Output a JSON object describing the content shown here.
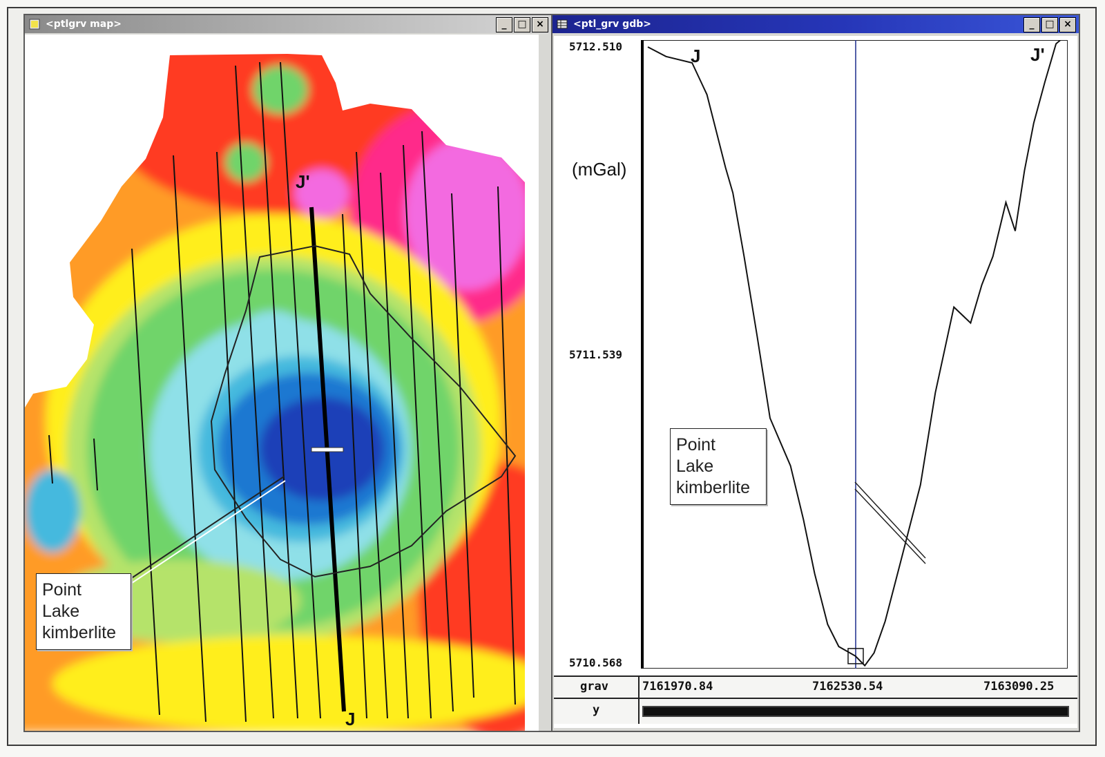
{
  "windows": {
    "map": {
      "title": "<ptlgrv map>",
      "controls": [
        "_",
        "□",
        "×"
      ]
    },
    "profile": {
      "title": "<ptl_grv gdb>",
      "controls": [
        "_",
        "□",
        "×"
      ]
    }
  },
  "map": {
    "profile_labels": {
      "start": "J",
      "end": "J'"
    },
    "callout": [
      "Point",
      "Lake",
      "kimberlite"
    ],
    "colors": {
      "deep_blue": "#1a3fb8",
      "blue": "#1f78d1",
      "light_blue": "#45b9de",
      "cyan": "#8fe0e8",
      "green": "#6fd46a",
      "light_green": "#b5e36b",
      "yellow": "#ffee1a",
      "orange": "#ff9b25",
      "red": "#ff3a22",
      "magenta": "#ff2a8a",
      "pink": "#f36be0",
      "white": "#ffffff"
    }
  },
  "profile": {
    "y_ticks": [
      "5712.510",
      "5711.539",
      "5710.568"
    ],
    "unit": "(mGal)",
    "endpoint_labels": {
      "start": "J",
      "end": "J'"
    },
    "callout": [
      "Point",
      "Lake",
      "kimberlite"
    ],
    "axis": {
      "channel_label": "grav",
      "x_values": [
        "7161970.84",
        "7162530.54",
        "7163090.25"
      ],
      "y_label": "y"
    }
  },
  "chart_data": {
    "type": "line",
    "title": "",
    "xlabel": "y",
    "ylabel": "(mGal)",
    "ylim": [
      5710.568,
      5712.51
    ],
    "xlim": [
      7161970.84,
      7163090.25
    ],
    "series": [
      {
        "x": [
          7161970.84,
          7162020,
          7162090,
          7162130,
          7162180,
          7162200,
          7162230,
          7162265,
          7162300,
          7162355,
          7162390,
          7162420,
          7162455,
          7162485,
          7162515,
          7162530,
          7162555,
          7162580,
          7162610,
          7162650,
          7162705,
          7162745,
          7162795,
          7162840,
          7162870,
          7162900,
          7162935,
          7162960,
          7162985,
          7163010,
          7163040,
          7163070,
          7163090.25
        ],
        "y": [
          5712.51,
          5712.48,
          5712.46,
          5712.36,
          5712.13,
          5712.05,
          5711.85,
          5711.6,
          5711.34,
          5711.19,
          5711.02,
          5710.85,
          5710.69,
          5710.62,
          5710.6,
          5710.59,
          5710.56,
          5710.6,
          5710.7,
          5710.88,
          5711.13,
          5711.42,
          5711.69,
          5711.64,
          5711.76,
          5711.85,
          5712.02,
          5711.93,
          5712.12,
          5712.27,
          5712.4,
          5712.52,
          5712.54
        ]
      }
    ],
    "cursor_x": 7162530.54,
    "grid": false
  }
}
